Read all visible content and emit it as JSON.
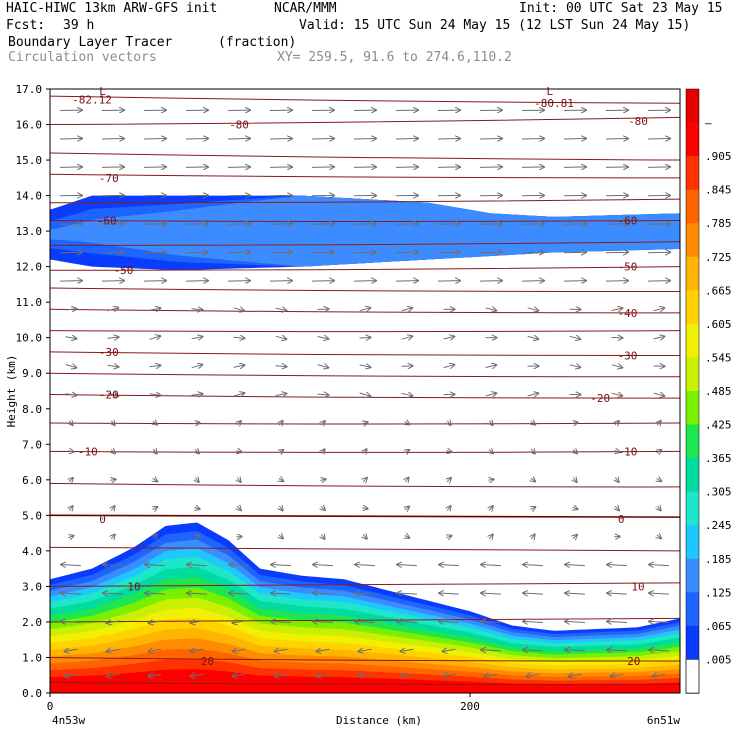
{
  "header": {
    "title_left": "HAIC-HIWC 13km ARW-GFS init",
    "title_center": "NCAR/MMM",
    "init_text": "Init: 00 UTC Sat 23 May 15",
    "fcst_label": "Fcst:",
    "fcst_value": "39 h",
    "valid_text": "Valid: 15 UTC Sun 24 May 15 (12 LST Sun 24 May 15)",
    "field_name": "Boundary Layer Tracer",
    "field_units": "(fraction)",
    "vector_label": "Circulation vectors",
    "xy_text": "XY= 259.5, 91.6 to 274.6,110.2"
  },
  "chart_data": {
    "type": "heatmap",
    "xlabel": "Distance (km)",
    "ylabel": "Height (km)",
    "xlim": [
      0,
      300
    ],
    "ylim": [
      0,
      17
    ],
    "x_ticks": [
      {
        "value": 0,
        "label": "0"
      },
      {
        "value": 200,
        "label": "200"
      }
    ],
    "x_end_labels": {
      "left": "4n53w",
      "right": "6n51w"
    },
    "y_ticks": [
      "0.0",
      "1.0",
      "2.0",
      "3.0",
      "4.0",
      "5.0",
      "6.0",
      "7.0",
      "8.0",
      "9.0",
      "10.0",
      "11.0",
      "12.0",
      "13.0",
      "14.0",
      "15.0",
      "16.0",
      "17.0"
    ],
    "colorbar": {
      "labels": [
        ".005",
        ".065",
        ".125",
        ".185",
        ".245",
        ".305",
        ".365",
        ".425",
        ".485",
        ".545",
        ".605",
        ".665",
        ".725",
        ".785",
        ".845",
        ".905",
        "–"
      ],
      "colors": [
        "#ffffff",
        "#0a3cff",
        "#1e64ff",
        "#3c8cff",
        "#1ec8ff",
        "#1ee6c8",
        "#00dca0",
        "#1ee650",
        "#78f000",
        "#c8f000",
        "#f0f000",
        "#ffd200",
        "#ffb400",
        "#ff8c00",
        "#ff6400",
        "#ff3200",
        "#ff0000",
        "#e60000"
      ]
    },
    "tracer_surface_top": [
      {
        "x": 0,
        "y": 3.2
      },
      {
        "x": 20,
        "y": 3.5
      },
      {
        "x": 40,
        "y": 4.1
      },
      {
        "x": 55,
        "y": 4.7
      },
      {
        "x": 70,
        "y": 4.8
      },
      {
        "x": 85,
        "y": 4.3
      },
      {
        "x": 100,
        "y": 3.5
      },
      {
        "x": 120,
        "y": 3.3
      },
      {
        "x": 140,
        "y": 3.2
      },
      {
        "x": 160,
        "y": 2.9
      },
      {
        "x": 180,
        "y": 2.6
      },
      {
        "x": 200,
        "y": 2.3
      },
      {
        "x": 220,
        "y": 1.9
      },
      {
        "x": 240,
        "y": 1.75
      },
      {
        "x": 260,
        "y": 1.8
      },
      {
        "x": 280,
        "y": 1.85
      },
      {
        "x": 300,
        "y": 2.1
      }
    ],
    "tracer_upper_layer": {
      "top": [
        {
          "x": 0,
          "y": 13.6
        },
        {
          "x": 20,
          "y": 14.0
        },
        {
          "x": 60,
          "y": 14.0
        },
        {
          "x": 120,
          "y": 14.0
        },
        {
          "x": 180,
          "y": 13.8
        },
        {
          "x": 210,
          "y": 13.5
        },
        {
          "x": 240,
          "y": 13.4
        },
        {
          "x": 300,
          "y": 13.5
        }
      ],
      "bottom": [
        {
          "x": 0,
          "y": 12.2
        },
        {
          "x": 20,
          "y": 12.0
        },
        {
          "x": 60,
          "y": 11.9
        },
        {
          "x": 120,
          "y": 12.0
        },
        {
          "x": 180,
          "y": 12.2
        },
        {
          "x": 210,
          "y": 12.3
        },
        {
          "x": 240,
          "y": 12.4
        },
        {
          "x": 300,
          "y": 12.5
        }
      ]
    },
    "temperature_contour_labels": [
      {
        "text": "-82.12",
        "x": 20,
        "y": 16.7
      },
      {
        "text": "-80.81",
        "x": 240,
        "y": 16.6
      },
      {
        "text": "-80",
        "x": 90,
        "y": 16.0
      },
      {
        "text": "-80",
        "x": 280,
        "y": 16.1
      },
      {
        "text": "-70",
        "x": 28,
        "y": 14.5
      },
      {
        "text": "-60",
        "x": 27,
        "y": 13.3
      },
      {
        "text": "-60",
        "x": 275,
        "y": 13.3
      },
      {
        "text": "-50",
        "x": 35,
        "y": 11.9
      },
      {
        "text": "-50",
        "x": 275,
        "y": 12.0
      },
      {
        "text": "-40",
        "x": 275,
        "y": 10.7
      },
      {
        "text": "-30",
        "x": 28,
        "y": 9.6
      },
      {
        "text": "-30",
        "x": 275,
        "y": 9.5
      },
      {
        "text": "-20",
        "x": 28,
        "y": 8.4
      },
      {
        "text": "-20",
        "x": 262,
        "y": 8.3
      },
      {
        "text": "-10",
        "x": 18,
        "y": 6.8
      },
      {
        "text": "-10",
        "x": 275,
        "y": 6.8
      },
      {
        "text": "0",
        "x": 25,
        "y": 4.9
      },
      {
        "text": "0",
        "x": 272,
        "y": 4.9
      },
      {
        "text": "10",
        "x": 40,
        "y": 3.0
      },
      {
        "text": "10",
        "x": 280,
        "y": 3.0
      },
      {
        "text": "20",
        "x": 75,
        "y": 0.9
      },
      {
        "text": "20",
        "x": 278,
        "y": 0.9
      }
    ],
    "low_markers": [
      {
        "text": "L",
        "x": 25,
        "y": 16.95
      },
      {
        "text": "L",
        "x": 238,
        "y": 16.95
      }
    ],
    "temperature_contour_lines": [
      {
        "value": -82,
        "y_left": 16.8,
        "y_right": 16.6
      },
      {
        "value": -80,
        "y_left": 16.0,
        "y_right": 16.2
      },
      {
        "value": -75,
        "y_left": 15.2,
        "y_right": 15.0
      },
      {
        "value": -70,
        "y_left": 14.6,
        "y_right": 14.5
      },
      {
        "value": -65,
        "y_left": 13.8,
        "y_right": 13.9
      },
      {
        "value": -60,
        "y_left": 13.3,
        "y_right": 13.3
      },
      {
        "value": -55,
        "y_left": 12.6,
        "y_right": 12.7
      },
      {
        "value": -50,
        "y_left": 11.9,
        "y_right": 12.0
      },
      {
        "value": -45,
        "y_left": 11.4,
        "y_right": 11.3
      },
      {
        "value": -40,
        "y_left": 10.8,
        "y_right": 10.7
      },
      {
        "value": -35,
        "y_left": 10.2,
        "y_right": 10.2
      },
      {
        "value": -30,
        "y_left": 9.6,
        "y_right": 9.5
      },
      {
        "value": -25,
        "y_left": 9.0,
        "y_right": 8.9
      },
      {
        "value": -20,
        "y_left": 8.4,
        "y_right": 8.3
      },
      {
        "value": -15,
        "y_left": 7.6,
        "y_right": 7.6
      },
      {
        "value": -10,
        "y_left": 6.8,
        "y_right": 6.8
      },
      {
        "value": -5,
        "y_left": 5.9,
        "y_right": 5.8
      },
      {
        "value": 0,
        "y_left": 5.0,
        "y_right": 4.95
      },
      {
        "value": 5,
        "y_left": 4.1,
        "y_right": 4.0
      },
      {
        "value": 10,
        "y_left": 3.0,
        "y_right": 3.1
      },
      {
        "value": 15,
        "y_left": 2.0,
        "y_right": 2.1
      },
      {
        "value": 20,
        "y_left": 1.0,
        "y_right": 0.9
      },
      {
        "value": 25,
        "y_left": 0.3,
        "y_right": 0.25
      }
    ],
    "vector_columns_x": [
      10,
      30,
      50,
      70,
      90,
      110,
      130,
      150,
      170,
      190,
      210,
      230,
      250,
      270,
      290
    ],
    "vector_rows_y": [
      0.5,
      1.2,
      2.0,
      2.8,
      3.6,
      4.4,
      5.2,
      6.0,
      6.8,
      7.6,
      8.4,
      9.2,
      10.0,
      10.8,
      11.6,
      12.4,
      13.2,
      14.0,
      14.8,
      15.6,
      16.4
    ]
  }
}
